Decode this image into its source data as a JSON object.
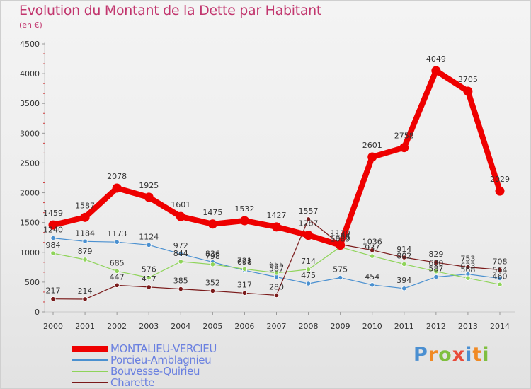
{
  "title": "Evolution du Montant de la Dette par Habitant",
  "subtitle": "(en €)",
  "logo": {
    "text": "Proxiti",
    "letters": [
      "P",
      "r",
      "o",
      "x",
      "i",
      "t",
      "i"
    ],
    "colors": [
      "#4a8fd1",
      "#f08a24",
      "#7fbf3f",
      "#e84a3a",
      "#4a8fd1",
      "#f08a24",
      "#7fbf3f"
    ]
  },
  "chart_data": {
    "type": "line",
    "title": "Evolution du Montant de la Dette par Habitant",
    "subtitle": "(en €)",
    "xlabel": "",
    "ylabel": "",
    "x": [
      "2000",
      "2001",
      "2002",
      "2003",
      "2004",
      "2005",
      "2006",
      "2007",
      "2008",
      "2009",
      "2010",
      "2011",
      "2012",
      "2013",
      "2014"
    ],
    "ylim": [
      0,
      4500
    ],
    "yticks": [
      0,
      500,
      1000,
      1500,
      2000,
      2500,
      3000,
      3500,
      4000,
      4500
    ],
    "grid": false,
    "legend_position": "bottom-left",
    "series": [
      {
        "name": "MONTALIEU-VERCIEU",
        "color": "#ee0000",
        "emphasis": true,
        "values": [
          1459,
          1587,
          2078,
          1925,
          1601,
          1475,
          1532,
          1427,
          1287,
          1120,
          2601,
          2758,
          4049,
          3705,
          2029
        ],
        "labels": [
          "1459",
          "1587",
          "2078",
          "1925",
          "1601",
          "1475",
          "1532",
          "1427",
          "1287",
          "1120",
          "2601",
          "2758",
          "4049",
          "3705",
          "2029"
        ]
      },
      {
        "name": "Porcieu-Amblagnieu",
        "color": "#4a90d0",
        "values": [
          1240,
          1184,
          1173,
          1124,
          972,
          836,
          698,
          587,
          475,
          575,
          454,
          394,
          587,
          633,
          564
        ],
        "labels": [
          "1240",
          "1184",
          "1173",
          "1124",
          "972",
          "836",
          "698",
          "587",
          "475",
          "575",
          "454",
          "394",
          "587",
          "633",
          "564"
        ]
      },
      {
        "name": "Bouvesse-Quirieu",
        "color": "#8fd45a",
        "values": [
          984,
          879,
          685,
          576,
          844,
          798,
          721,
          655,
          714,
          1089,
          937,
          802,
          680,
          568,
          460
        ],
        "labels": [
          "984",
          "879",
          "685",
          "576",
          "844",
          "798",
          "721",
          "655",
          "714",
          "1089",
          "937",
          "802",
          "680",
          "568",
          "460"
        ]
      },
      {
        "name": "Charette",
        "color": "#7a1a1a",
        "values": [
          217,
          214,
          447,
          417,
          385,
          352,
          317,
          280,
          1557,
          1134,
          1036,
          914,
          829,
          753,
          708
        ],
        "labels": [
          "217",
          "214",
          "447",
          "417",
          "385",
          "352",
          "317",
          "280",
          "1557",
          "1134",
          "1036",
          "914",
          "829",
          "753",
          "708"
        ]
      }
    ]
  }
}
